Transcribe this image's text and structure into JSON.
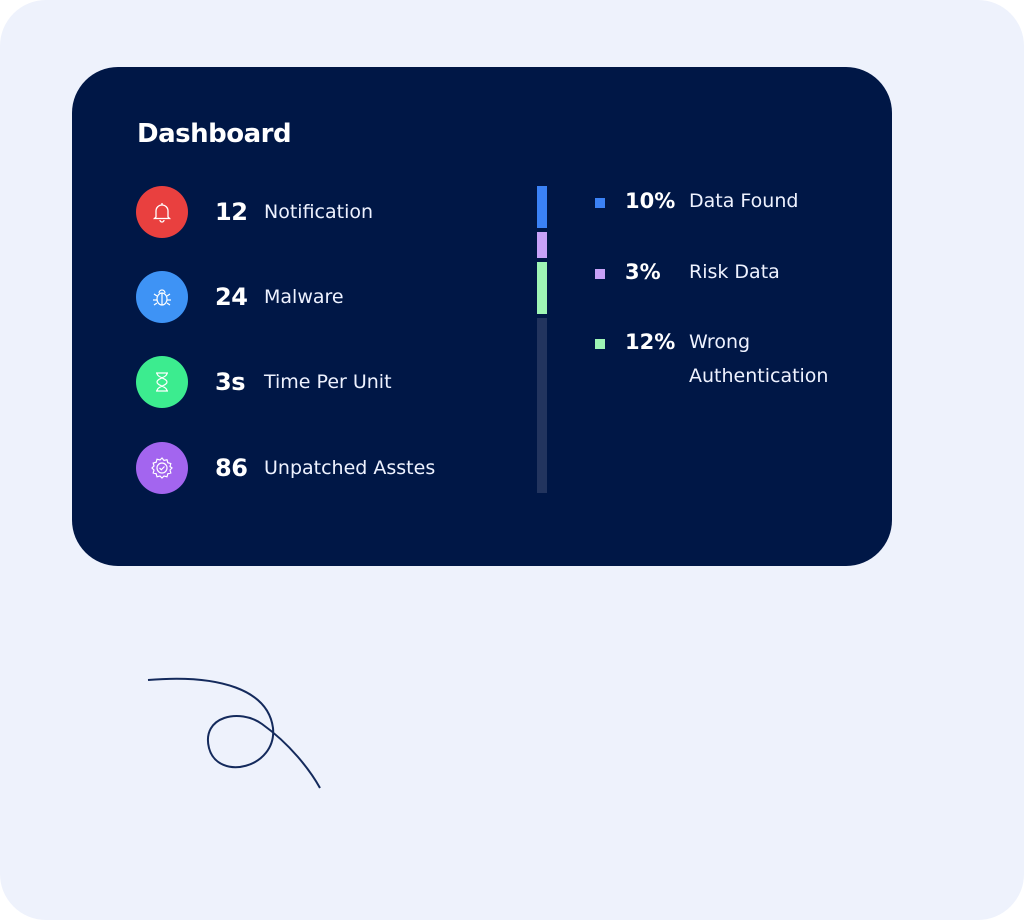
{
  "dashboard": {
    "title": "Dashboard",
    "stats": [
      {
        "value": "12",
        "label": "Notification",
        "icon": "bell-icon",
        "color": "#e9403f"
      },
      {
        "value": "24",
        "label": "Malware",
        "icon": "bug-icon",
        "color": "#3e93f5"
      },
      {
        "value": "3s",
        "label": "Time Per Unit",
        "icon": "hourglass-icon",
        "color": "#3cec8f"
      },
      {
        "value": "86",
        "label": "Unpatched Asstes",
        "icon": "gear-check-icon",
        "color": "#a365ef"
      }
    ],
    "legend": [
      {
        "percent": "10%",
        "label": "Data Found",
        "color": "#3b82f6"
      },
      {
        "percent": "3%",
        "label": "Risk Data",
        "color": "#c8a2f8"
      },
      {
        "percent": "12%",
        "label": "Wrong Authentication",
        "color": "#9ef5b5"
      }
    ],
    "colors": {
      "card": "#001746",
      "background": "#eef2fc",
      "bar_track": "#22345e"
    }
  }
}
